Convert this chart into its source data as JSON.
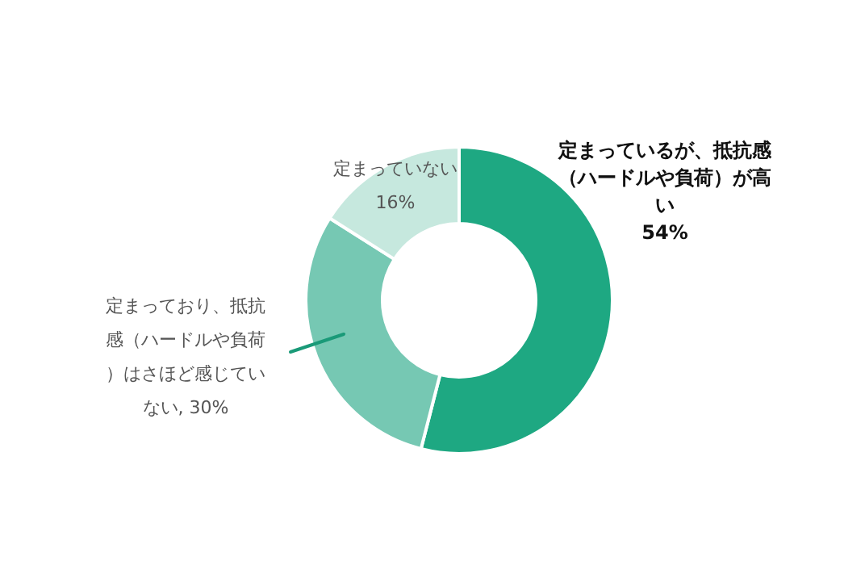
{
  "chart_data": {
    "type": "donut",
    "categories": [
      "定まっているが、抵抗感（ハードルや負荷）が高い",
      "定まっており、抵抗感（ハードルや負荷）はさほど感じていない",
      "定まっていない"
    ],
    "values": [
      54,
      30,
      16
    ],
    "colors": [
      "#1ea882",
      "#76c8b3",
      "#c6e8de"
    ],
    "value_labels": [
      "54%",
      "30%",
      "16%"
    ]
  }
}
